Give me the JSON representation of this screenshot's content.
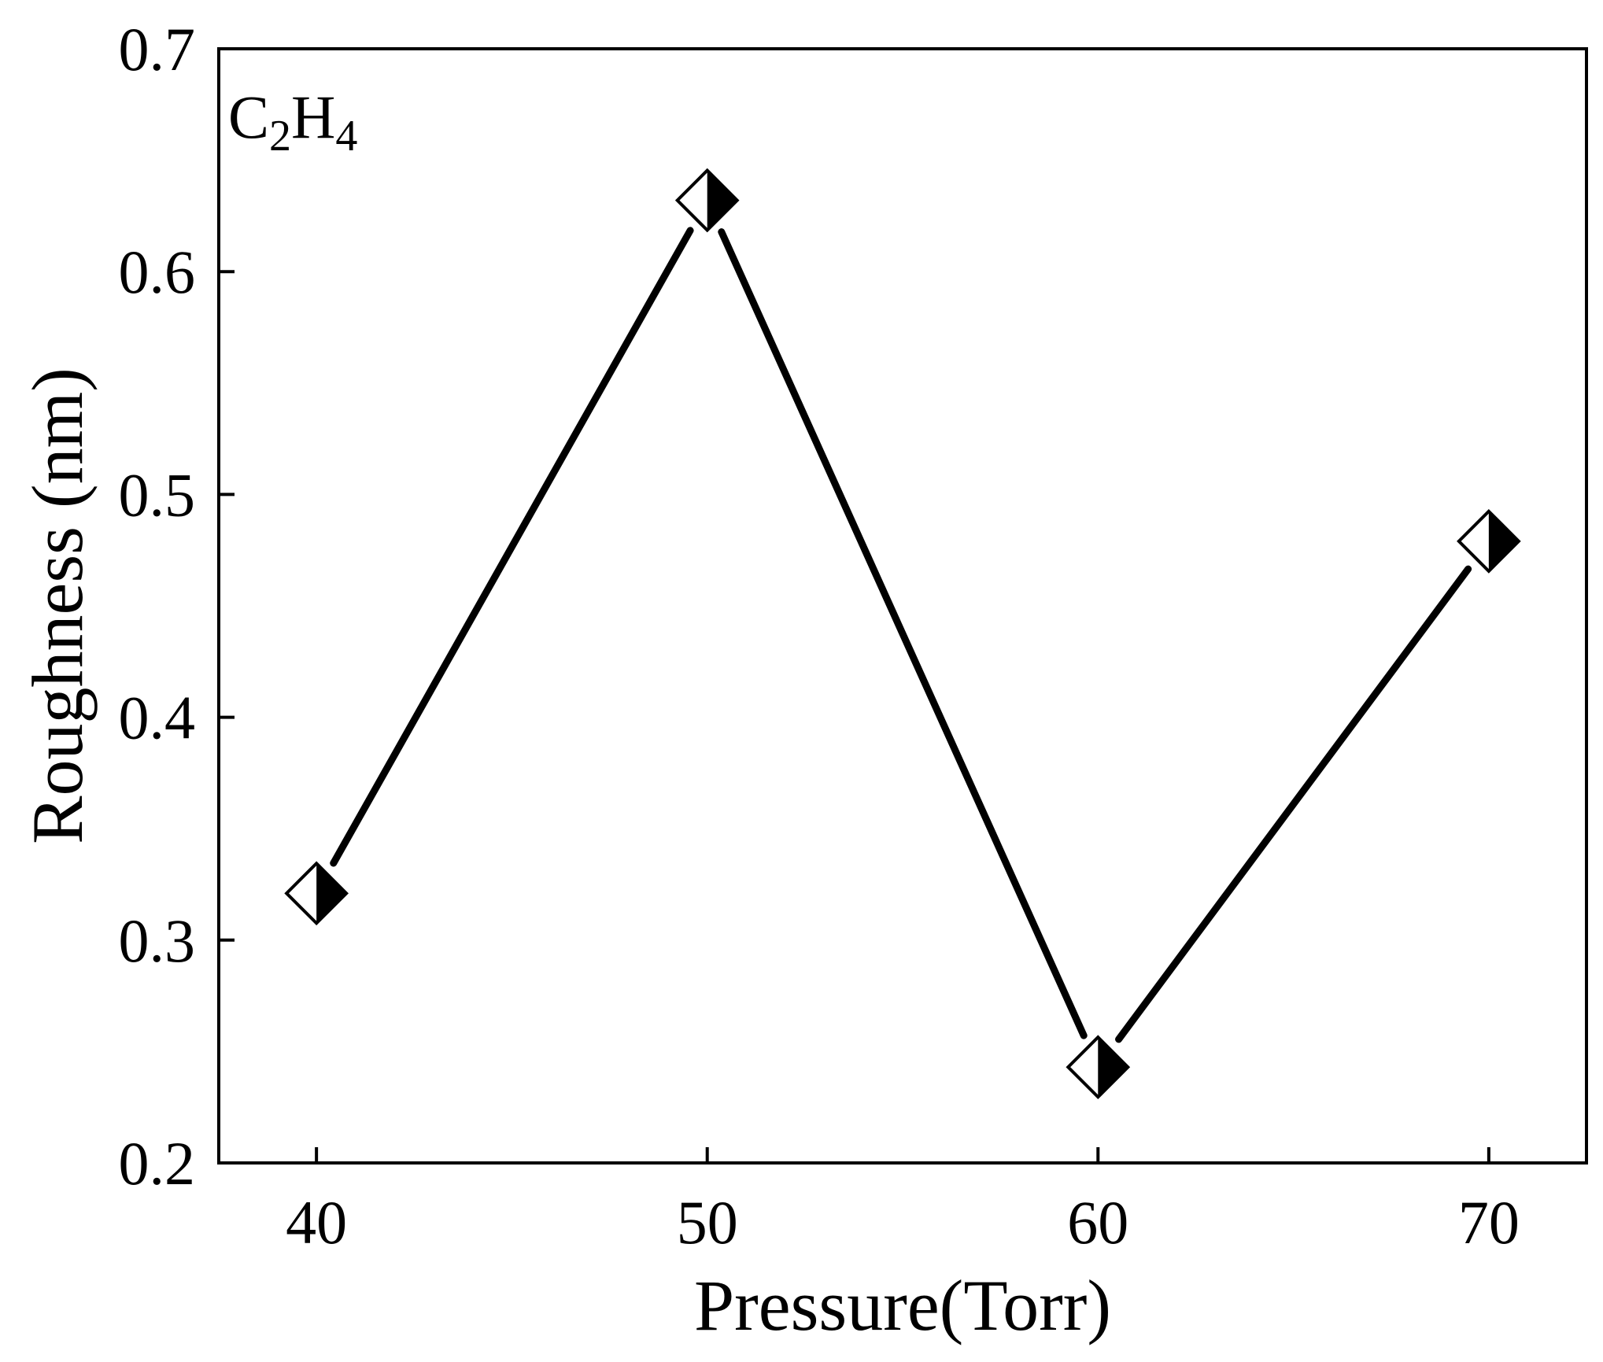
{
  "chart_data": {
    "type": "line",
    "title": "",
    "xlabel": "Pressure(Torr)",
    "ylabel": "Roughness (nm)",
    "annotation": {
      "main": "C",
      "sub1": "2",
      "mid": "H",
      "sub2": "4"
    },
    "xlim": [
      37.5,
      72.5
    ],
    "ylim": [
      0.2,
      0.7
    ],
    "x_ticks": [
      40,
      50,
      60,
      70
    ],
    "y_ticks": [
      0.2,
      0.3,
      0.4,
      0.5,
      0.6,
      0.7
    ],
    "x_tick_labels": [
      "40",
      "50",
      "60",
      "70"
    ],
    "y_tick_labels": [
      "0.2",
      "0.3",
      "0.4",
      "0.5",
      "0.6",
      "0.7"
    ],
    "grid": false,
    "marker": "half-filled-diamond",
    "line_color": "#000000",
    "marker_fill": "#000000",
    "series": [
      {
        "x": [
          40,
          50,
          60,
          70
        ],
        "values": [
          0.321,
          0.632,
          0.243,
          0.479
        ]
      }
    ]
  }
}
